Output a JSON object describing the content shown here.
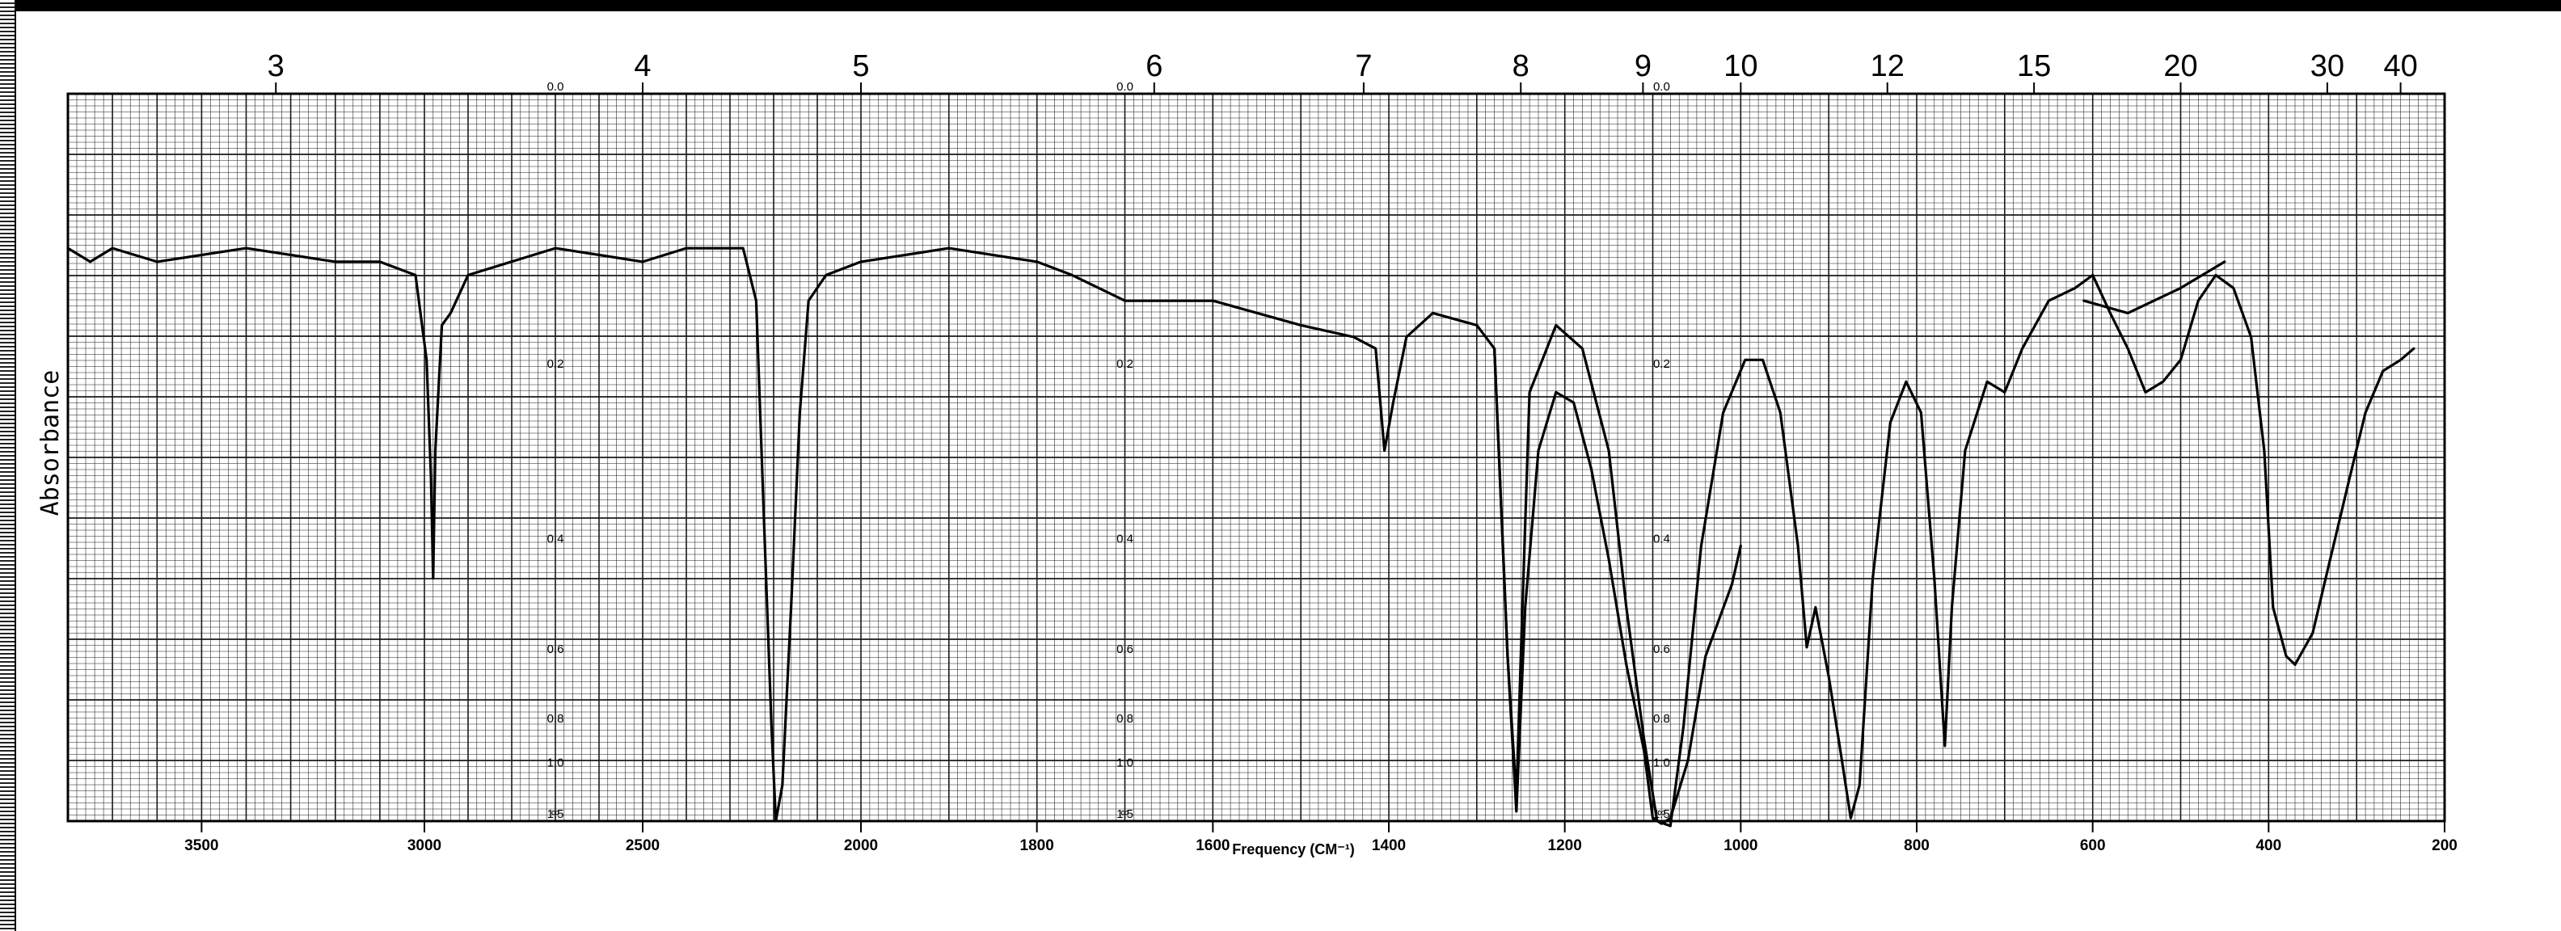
{
  "chart_data": {
    "type": "line",
    "title": "",
    "xlabel": "Frequency (CM⁻¹)",
    "ylabel": "Absorbance",
    "xlim": [
      3800,
      200
    ],
    "ylim": [
      0,
      1.5
    ],
    "grid": true,
    "legend": "none",
    "line_color": "#000000",
    "grid_color": "#1a1a1a",
    "x_ticks": [
      "3500",
      "3000",
      "2500",
      "2000",
      "1800",
      "1600",
      "1400",
      "1200",
      "1000",
      "800",
      "600",
      "400",
      "200"
    ],
    "wavelength_ticks": [
      "3",
      "4",
      "5",
      "6",
      "7",
      "8",
      "9",
      "10",
      "12",
      "15",
      "20",
      "30",
      "40"
    ],
    "absorbance_ticks": [
      "0.0",
      "0.2",
      "0.4",
      "0.6",
      "0.8",
      "1.0",
      "1.5",
      "∞"
    ],
    "series": [
      {
        "points": [
          [
            3800,
            0.1
          ],
          [
            3750,
            0.11
          ],
          [
            3700,
            0.1
          ],
          [
            3600,
            0.11
          ],
          [
            3400,
            0.1
          ],
          [
            3200,
            0.11
          ],
          [
            3100,
            0.11
          ],
          [
            3020,
            0.12
          ],
          [
            2995,
            0.19
          ],
          [
            2985,
            0.31
          ],
          [
            2980,
            0.45
          ],
          [
            2975,
            0.28
          ],
          [
            2960,
            0.16
          ],
          [
            2940,
            0.15
          ],
          [
            2900,
            0.12
          ],
          [
            2700,
            0.1
          ],
          [
            2500,
            0.11
          ],
          [
            2400,
            0.1
          ],
          [
            2270,
            0.1
          ],
          [
            2240,
            0.14
          ],
          [
            2220,
            0.4
          ],
          [
            2205,
            0.8
          ],
          [
            2195,
            1.5
          ],
          [
            2180,
            1.1
          ],
          [
            2160,
            0.5
          ],
          [
            2140,
            0.24
          ],
          [
            2120,
            0.14
          ],
          [
            2080,
            0.12
          ],
          [
            2000,
            0.11
          ],
          [
            1900,
            0.1
          ],
          [
            1800,
            0.11
          ],
          [
            1760,
            0.12
          ],
          [
            1700,
            0.14
          ],
          [
            1600,
            0.14
          ],
          [
            1500,
            0.16
          ],
          [
            1440,
            0.17
          ],
          [
            1415,
            0.18
          ],
          [
            1405,
            0.28
          ],
          [
            1395,
            0.23
          ],
          [
            1380,
            0.17
          ],
          [
            1350,
            0.15
          ],
          [
            1300,
            0.16
          ],
          [
            1280,
            0.18
          ],
          [
            1265,
            0.6
          ],
          [
            1255,
            1.2
          ],
          [
            1250,
            0.6
          ],
          [
            1240,
            0.22
          ],
          [
            1210,
            0.16
          ],
          [
            1180,
            0.18
          ],
          [
            1150,
            0.28
          ],
          [
            1130,
            0.5
          ],
          [
            1110,
            0.85
          ],
          [
            1095,
            1.5
          ],
          [
            1080,
            1.6
          ],
          [
            1065,
            0.8
          ],
          [
            1045,
            0.4
          ],
          [
            1020,
            0.24
          ],
          [
            995,
            0.19
          ],
          [
            975,
            0.19
          ],
          [
            955,
            0.24
          ],
          [
            935,
            0.4
          ],
          [
            925,
            0.58
          ],
          [
            915,
            0.5
          ],
          [
            900,
            0.65
          ],
          [
            885,
            0.95
          ],
          [
            875,
            1.45
          ],
          [
            865,
            1.1
          ],
          [
            850,
            0.45
          ],
          [
            830,
            0.25
          ],
          [
            812,
            0.21
          ],
          [
            795,
            0.24
          ],
          [
            780,
            0.45
          ],
          [
            768,
            0.88
          ],
          [
            760,
            0.5
          ],
          [
            745,
            0.28
          ],
          [
            720,
            0.21
          ],
          [
            700,
            0.22
          ],
          [
            680,
            0.18
          ],
          [
            650,
            0.14
          ],
          [
            620,
            0.13
          ],
          [
            600,
            0.12
          ],
          [
            580,
            0.15
          ],
          [
            560,
            0.18
          ],
          [
            540,
            0.22
          ],
          [
            520,
            0.21
          ],
          [
            500,
            0.19
          ],
          [
            480,
            0.14
          ],
          [
            460,
            0.12
          ],
          [
            440,
            0.13
          ],
          [
            420,
            0.17
          ],
          [
            405,
            0.28
          ],
          [
            395,
            0.5
          ],
          [
            380,
            0.6
          ],
          [
            370,
            0.62
          ],
          [
            350,
            0.55
          ],
          [
            330,
            0.42
          ],
          [
            310,
            0.32
          ],
          [
            290,
            0.24
          ],
          [
            270,
            0.2
          ],
          [
            250,
            0.19
          ],
          [
            235,
            0.18
          ]
        ]
      },
      {
        "points": [
          [
            1280,
            0.18
          ],
          [
            1265,
            0.6
          ],
          [
            1255,
            1.35
          ],
          [
            1245,
            0.5
          ],
          [
            1230,
            0.28
          ],
          [
            1210,
            0.22
          ],
          [
            1190,
            0.23
          ],
          [
            1170,
            0.3
          ],
          [
            1150,
            0.42
          ],
          [
            1130,
            0.62
          ],
          [
            1110,
            0.9
          ],
          [
            1100,
            1.45
          ],
          [
            1090,
            1.55
          ],
          [
            1080,
            1.45
          ],
          [
            1060,
            0.95
          ],
          [
            1040,
            0.6
          ],
          [
            1010,
            0.46
          ],
          [
            1000,
            0.4
          ]
        ]
      },
      {
        "points": [
          [
            610,
            0.14
          ],
          [
            560,
            0.15
          ],
          [
            500,
            0.13
          ],
          [
            450,
            0.11
          ]
        ]
      }
    ]
  }
}
